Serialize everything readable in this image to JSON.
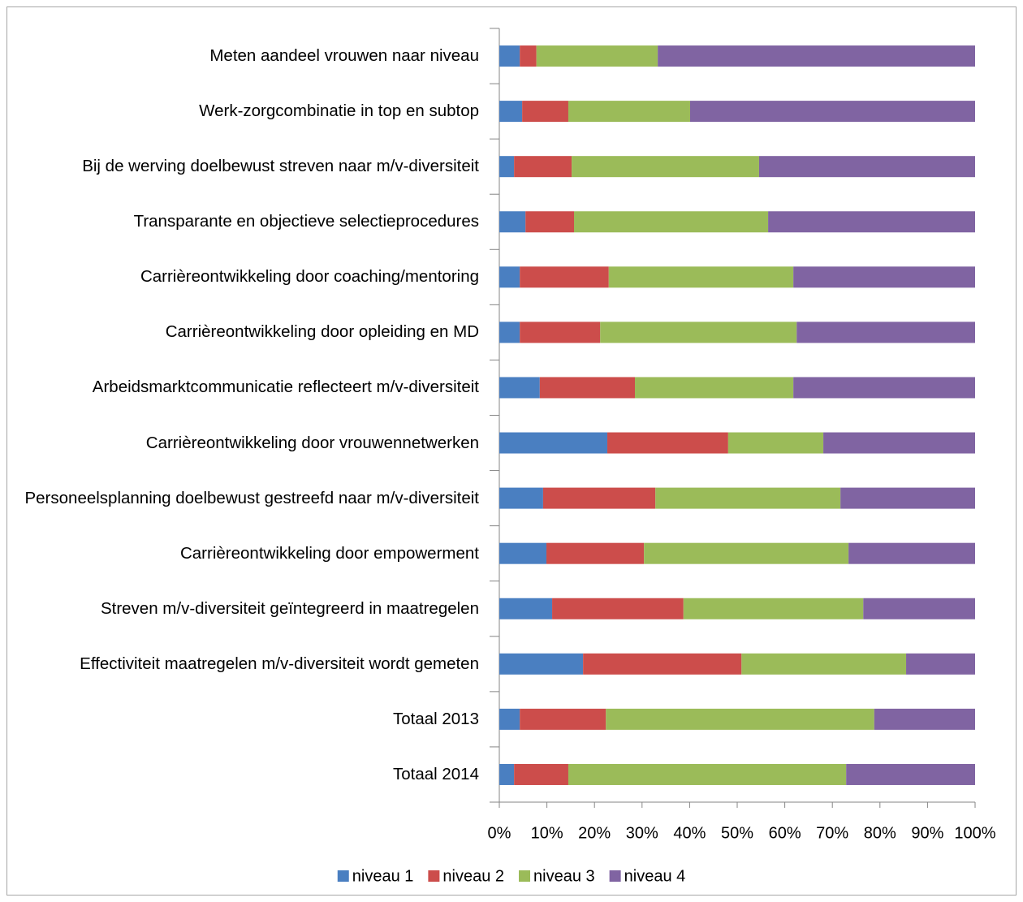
{
  "chart_data": {
    "type": "stacked_bar_horizontal",
    "categories": [
      "Meten aandeel vrouwen naar niveau",
      "Werk-zorgcombinatie in top en subtop",
      "Bij de werving doelbewust streven naar m/v-diversiteit",
      "Transparante en objectieve selectieprocedures",
      "Carrièreontwikkeling door coaching/mentoring",
      "Carrièreontwikkeling door opleiding en MD",
      "Arbeidsmarktcommunicatie reflecteert m/v-diversiteit",
      "Carrièreontwikkeling door vrouwennetwerken",
      "Personeelsplanning doelbewust gestreefd naar m/v-diversiteit",
      "Carrièreontwikkeling door empowerment",
      "Streven m/v-diversiteit geïntegreerd in maatregelen",
      "Effectiviteit maatregelen m/v-diversiteit wordt gemeten",
      "Totaal 2013",
      "Totaal 2014"
    ],
    "series": [
      {
        "name": "niveau 1",
        "color": "#4a7fc1",
        "values": [
          4.3,
          4.8,
          3.1,
          5.5,
          4.3,
          4.3,
          8.5,
          22.7,
          9.2,
          9.9,
          11.1,
          17.6,
          4.3,
          3.1
        ]
      },
      {
        "name": "niveau 2",
        "color": "#cc4d4b",
        "values": [
          3.5,
          9.7,
          12.1,
          10.2,
          18.7,
          16.9,
          20.0,
          25.4,
          23.6,
          20.5,
          27.6,
          33.3,
          18.1,
          11.4
        ]
      },
      {
        "name": "niveau 3",
        "color": "#9bbb59",
        "values": [
          25.5,
          25.6,
          39.4,
          40.8,
          38.8,
          41.3,
          33.3,
          20.0,
          38.9,
          43.0,
          37.8,
          34.6,
          56.4,
          58.4
        ]
      },
      {
        "name": "niveau 4",
        "color": "#8064a2",
        "values": [
          66.7,
          59.9,
          45.4,
          43.5,
          38.2,
          37.5,
          38.2,
          31.9,
          28.3,
          26.6,
          23.5,
          14.5,
          21.2,
          27.1
        ]
      }
    ],
    "xlim": [
      0,
      100
    ],
    "xticks": [
      {
        "value": 0,
        "label": "0%"
      },
      {
        "value": 10,
        "label": "10%"
      },
      {
        "value": 20,
        "label": "20%"
      },
      {
        "value": 30,
        "label": "30%"
      },
      {
        "value": 40,
        "label": "40%"
      },
      {
        "value": 50,
        "label": "50%"
      },
      {
        "value": 60,
        "label": "60%"
      },
      {
        "value": 70,
        "label": "70%"
      },
      {
        "value": 80,
        "label": "80%"
      },
      {
        "value": 90,
        "label": "90%"
      },
      {
        "value": 100,
        "label": "100%"
      }
    ],
    "legend": "bottom"
  }
}
